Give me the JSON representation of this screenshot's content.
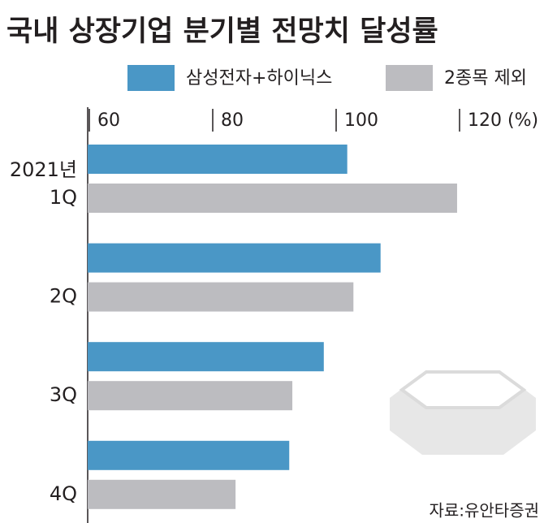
{
  "chart_data": {
    "type": "hbar",
    "title": "국내 상장기업 분기별 전망치 달성률",
    "year": "2021년",
    "categories": [
      "1Q",
      "2Q",
      "3Q",
      "4Q"
    ],
    "series": [
      {
        "name": "삼성전자+하이닉스",
        "color": "#4a97c6",
        "values": [
          101.8,
          107.2,
          98.0,
          92.4
        ]
      },
      {
        "name": "2종목 제외",
        "color": "#bcbcc0",
        "values": [
          119.6,
          102.8,
          92.9,
          83.7
        ]
      }
    ],
    "xlim": [
      60,
      122
    ],
    "xticks": [
      60,
      80,
      100,
      {
        "value": 120,
        "label": "120 (%)"
      }
    ],
    "source": "자료:유안타증권"
  }
}
